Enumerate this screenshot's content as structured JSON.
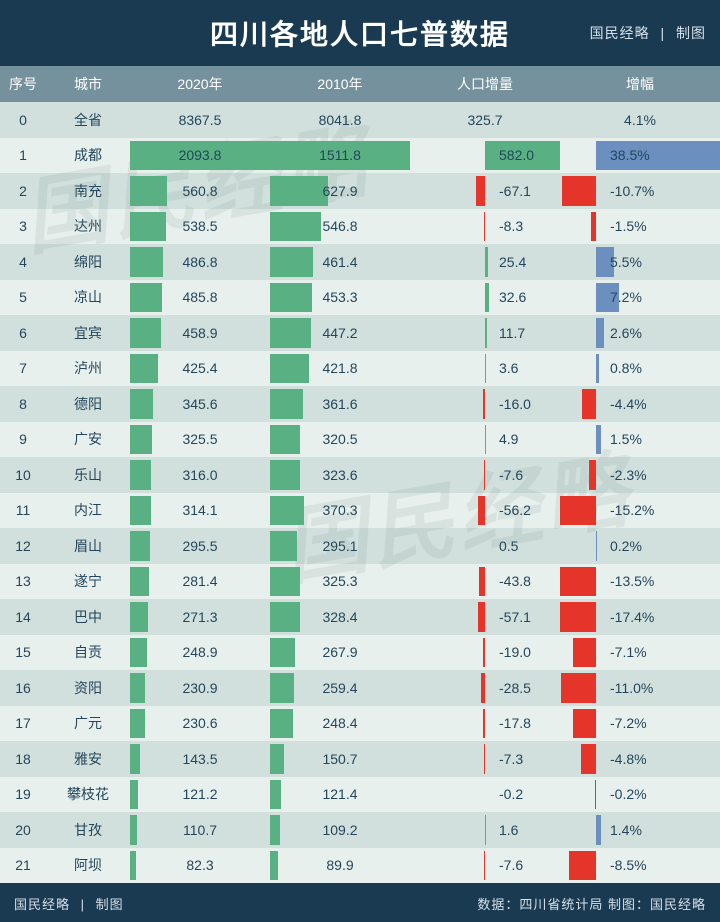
{
  "title": "四川各地人口七普数据",
  "header_right_1": "国民经略",
  "header_right_2": "制图",
  "columns": {
    "idx": "序号",
    "city": "城市",
    "y2020": "2020年",
    "y2010": "2010年",
    "diff": "人口增量",
    "pct": "增幅"
  },
  "colors": {
    "bar_2020": "#59b082",
    "bar_2010": "#59b082",
    "bar_diff_pos": "#59b082",
    "bar_diff_neg": "#e5352b",
    "bar_pct_pos": "#6b8fbf",
    "bar_pct_neg": "#e5352b",
    "header_bg": "#1a3a52",
    "thead_bg": "#74919d",
    "row_even": "#d1e0dc",
    "row_odd": "#e8f0ee",
    "text": "#24465c"
  },
  "scales": {
    "y2020_max": 2093.8,
    "y2010_max": 1511.8,
    "diff_abs_max": 582.0,
    "pct_abs_max": 38.5
  },
  "rows": [
    {
      "idx": 0,
      "city": "全省",
      "y2020": 8367.5,
      "y2010": 8041.8,
      "diff": 325.7,
      "pct": 4.1,
      "is_total": true
    },
    {
      "idx": 1,
      "city": "成都",
      "y2020": 2093.8,
      "y2010": 1511.8,
      "diff": 582.0,
      "pct": 38.5
    },
    {
      "idx": 2,
      "city": "南充",
      "y2020": 560.8,
      "y2010": 627.9,
      "diff": -67.1,
      "pct": -10.7
    },
    {
      "idx": 3,
      "city": "达州",
      "y2020": 538.5,
      "y2010": 546.8,
      "diff": -8.3,
      "pct": -1.5
    },
    {
      "idx": 4,
      "city": "绵阳",
      "y2020": 486.8,
      "y2010": 461.4,
      "diff": 25.4,
      "pct": 5.5
    },
    {
      "idx": 5,
      "city": "凉山",
      "y2020": 485.8,
      "y2010": 453.3,
      "diff": 32.6,
      "pct": 7.2
    },
    {
      "idx": 6,
      "city": "宜宾",
      "y2020": 458.9,
      "y2010": 447.2,
      "diff": 11.7,
      "pct": 2.6
    },
    {
      "idx": 7,
      "city": "泸州",
      "y2020": 425.4,
      "y2010": 421.8,
      "diff": 3.6,
      "pct": 0.8
    },
    {
      "idx": 8,
      "city": "德阳",
      "y2020": 345.6,
      "y2010": 361.6,
      "diff": -16.0,
      "pct": -4.4
    },
    {
      "idx": 9,
      "city": "广安",
      "y2020": 325.5,
      "y2010": 320.5,
      "diff": 4.9,
      "pct": 1.5
    },
    {
      "idx": 10,
      "city": "乐山",
      "y2020": 316.0,
      "y2010": 323.6,
      "diff": -7.6,
      "pct": -2.3
    },
    {
      "idx": 11,
      "city": "内江",
      "y2020": 314.1,
      "y2010": 370.3,
      "diff": -56.2,
      "pct": -15.2
    },
    {
      "idx": 12,
      "city": "眉山",
      "y2020": 295.5,
      "y2010": 295.1,
      "diff": 0.5,
      "pct": 0.2
    },
    {
      "idx": 13,
      "city": "遂宁",
      "y2020": 281.4,
      "y2010": 325.3,
      "diff": -43.8,
      "pct": -13.5
    },
    {
      "idx": 14,
      "city": "巴中",
      "y2020": 271.3,
      "y2010": 328.4,
      "diff": -57.1,
      "pct": -17.4
    },
    {
      "idx": 15,
      "city": "自贡",
      "y2020": 248.9,
      "y2010": 267.9,
      "diff": -19.0,
      "pct": -7.1
    },
    {
      "idx": 16,
      "city": "资阳",
      "y2020": 230.9,
      "y2010": 259.4,
      "diff": -28.5,
      "pct": -11.0
    },
    {
      "idx": 17,
      "city": "广元",
      "y2020": 230.6,
      "y2010": 248.4,
      "diff": -17.8,
      "pct": -7.2
    },
    {
      "idx": 18,
      "city": "雅安",
      "y2020": 143.5,
      "y2010": 150.7,
      "diff": -7.3,
      "pct": -4.8
    },
    {
      "idx": 19,
      "city": "攀枝花",
      "y2020": 121.2,
      "y2010": 121.4,
      "diff": -0.2,
      "pct": -0.2
    },
    {
      "idx": 20,
      "city": "甘孜",
      "y2020": 110.7,
      "y2010": 109.2,
      "diff": 1.6,
      "pct": 1.4
    },
    {
      "idx": 21,
      "city": "阿坝",
      "y2020": 82.3,
      "y2010": 89.9,
      "diff": -7.6,
      "pct": -8.5
    }
  ],
  "footer_left_1": "国民经略",
  "footer_left_2": "制图",
  "footer_right": "数据：四川省统计局 制图：国民经略",
  "watermark_text": "国民经略"
}
